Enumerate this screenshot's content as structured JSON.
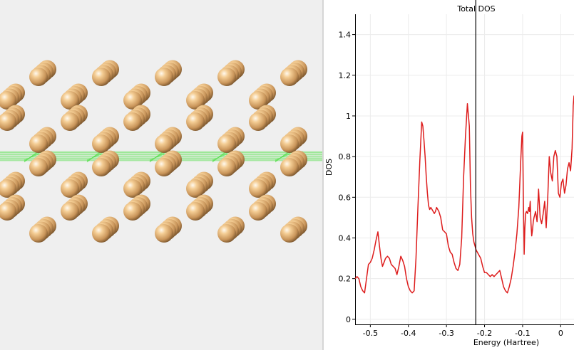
{
  "viewer": {
    "atom_color": "#e9b97e",
    "bond_color": "#53e04a"
  },
  "chart_data": {
    "type": "line",
    "title": "Total DOS",
    "xlabel": "Energy (Hartree)",
    "ylabel": "DOS",
    "xlim": [
      -0.54,
      0.035
    ],
    "ylim": [
      -0.025,
      1.5
    ],
    "xticks": [
      -0.5,
      -0.4,
      -0.3,
      -0.2,
      -0.1,
      0
    ],
    "xtick_labels": [
      "-0.5",
      "-0.4",
      "-0.3",
      "-0.2",
      "-0.1",
      "0"
    ],
    "yticks": [
      0,
      0.2,
      0.4,
      0.6,
      0.8,
      1,
      1.2,
      1.4
    ],
    "ytick_labels": [
      "0",
      "0.2",
      "0.4",
      "0.6",
      "0.8",
      "1",
      "1.2",
      "1.4"
    ],
    "grid": true,
    "fermi_level": -0.223,
    "series": [
      {
        "color": "#dd1c1c",
        "x": [
          -0.54,
          -0.535,
          -0.53,
          -0.525,
          -0.52,
          -0.515,
          -0.51,
          -0.505,
          -0.5,
          -0.495,
          -0.49,
          -0.485,
          -0.48,
          -0.476,
          -0.472,
          -0.468,
          -0.464,
          -0.46,
          -0.455,
          -0.45,
          -0.445,
          -0.44,
          -0.435,
          -0.43,
          -0.425,
          -0.42,
          -0.415,
          -0.41,
          -0.405,
          -0.4,
          -0.395,
          -0.39,
          -0.385,
          -0.38,
          -0.375,
          -0.37,
          -0.365,
          -0.362,
          -0.359,
          -0.356,
          -0.353,
          -0.35,
          -0.347,
          -0.344,
          -0.341,
          -0.338,
          -0.335,
          -0.332,
          -0.329,
          -0.326,
          -0.32,
          -0.315,
          -0.31,
          -0.305,
          -0.3,
          -0.295,
          -0.29,
          -0.285,
          -0.28,
          -0.275,
          -0.27,
          -0.265,
          -0.26,
          -0.255,
          -0.25,
          -0.245,
          -0.24,
          -0.237,
          -0.234,
          -0.231,
          -0.228,
          -0.225,
          -0.222,
          -0.219,
          -0.216,
          -0.213,
          -0.21,
          -0.205,
          -0.2,
          -0.195,
          -0.19,
          -0.185,
          -0.18,
          -0.175,
          -0.17,
          -0.165,
          -0.16,
          -0.155,
          -0.15,
          -0.145,
          -0.14,
          -0.135,
          -0.13,
          -0.125,
          -0.12,
          -0.115,
          -0.11,
          -0.105,
          -0.102,
          -0.1,
          -0.098,
          -0.096,
          -0.094,
          -0.092,
          -0.09,
          -0.087,
          -0.084,
          -0.082,
          -0.08,
          -0.078,
          -0.076,
          -0.074,
          -0.072,
          -0.07,
          -0.066,
          -0.062,
          -0.058,
          -0.054,
          -0.05,
          -0.046,
          -0.042,
          -0.038,
          -0.034,
          -0.03,
          -0.026,
          -0.022,
          -0.018,
          -0.014,
          -0.01,
          -0.006,
          -0.002,
          0.002,
          0.006,
          0.01,
          0.014,
          0.018,
          0.022,
          0.026,
          0.03,
          0.033,
          0.035
        ],
        "y": [
          0.2,
          0.21,
          0.2,
          0.16,
          0.14,
          0.13,
          0.2,
          0.27,
          0.28,
          0.3,
          0.34,
          0.39,
          0.43,
          0.36,
          0.3,
          0.26,
          0.28,
          0.3,
          0.31,
          0.3,
          0.27,
          0.26,
          0.25,
          0.22,
          0.26,
          0.31,
          0.29,
          0.26,
          0.2,
          0.16,
          0.14,
          0.13,
          0.14,
          0.3,
          0.55,
          0.78,
          0.97,
          0.95,
          0.88,
          0.8,
          0.7,
          0.62,
          0.56,
          0.54,
          0.55,
          0.54,
          0.53,
          0.52,
          0.53,
          0.55,
          0.53,
          0.5,
          0.44,
          0.43,
          0.42,
          0.36,
          0.33,
          0.32,
          0.28,
          0.25,
          0.24,
          0.27,
          0.4,
          0.7,
          0.9,
          1.06,
          0.95,
          0.65,
          0.5,
          0.42,
          0.38,
          0.36,
          0.34,
          0.33,
          0.32,
          0.31,
          0.3,
          0.26,
          0.23,
          0.23,
          0.22,
          0.21,
          0.22,
          0.21,
          0.22,
          0.23,
          0.24,
          0.2,
          0.16,
          0.14,
          0.13,
          0.16,
          0.2,
          0.26,
          0.33,
          0.42,
          0.55,
          0.78,
          0.9,
          0.92,
          0.6,
          0.32,
          0.45,
          0.52,
          0.53,
          0.52,
          0.55,
          0.53,
          0.58,
          0.47,
          0.41,
          0.44,
          0.48,
          0.5,
          0.53,
          0.48,
          0.64,
          0.5,
          0.47,
          0.52,
          0.58,
          0.45,
          0.6,
          0.8,
          0.72,
          0.68,
          0.8,
          0.83,
          0.8,
          0.62,
          0.6,
          0.67,
          0.69,
          0.62,
          0.66,
          0.74,
          0.77,
          0.73,
          0.84,
          1.05,
          1.1
        ]
      }
    ]
  }
}
